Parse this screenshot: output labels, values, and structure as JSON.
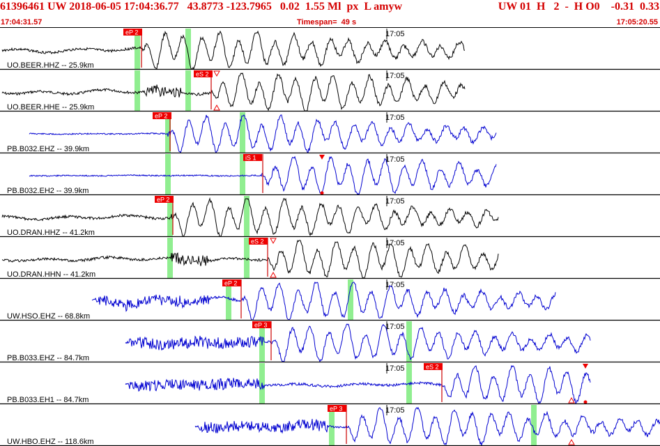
{
  "header": {
    "title": "61396461 UW 2018-06-05 17:04:36.77   43.8773 -123.7965   0.02  1.55 Ml  px  L amyw",
    "right_info": "UW 01  H   2  -  H O0    -0.31  0.33",
    "start_time": "17:04:31.57",
    "timespan_text": "Timespan=  49 s",
    "end_time": "17:05:20.55"
  },
  "tick_label": "17:05",
  "colors": {
    "header_text": "#d40000",
    "pick_box": "#ee0000",
    "pick_line": "#cc0000",
    "window_band": "#90ee90",
    "trace_black": "#000000",
    "trace_blue": "#0000d0",
    "separator": "#000000"
  },
  "traces": [
    {
      "label": "UO.BEER.HHZ -- 25.9km",
      "color": "black",
      "pick": "eP 2"
    },
    {
      "label": "UO.BEER.HHE -- 25.9km",
      "color": "black",
      "pick": "eS 2"
    },
    {
      "label": "PB.B032.EHZ -- 39.9km",
      "color": "blue",
      "pick": "eP 2"
    },
    {
      "label": "PB.B032.EH2 -- 39.9km",
      "color": "blue",
      "pick": "iS 1"
    },
    {
      "label": "UO.DRAN.HHZ -- 41.2km",
      "color": "black",
      "pick": "eP 2"
    },
    {
      "label": "UO.DRAN.HHN -- 41.2km",
      "color": "black",
      "pick": "eS 2"
    },
    {
      "label": "UW.HSO.EHZ -- 68.8km",
      "color": "blue",
      "pick": "eP 2"
    },
    {
      "label": "PB.B033.EHZ -- 84.7km",
      "color": "blue",
      "pick": "eP 3"
    },
    {
      "label": "PB.B033.EH1 -- 84.7km",
      "color": "blue",
      "pick": "eS 2"
    },
    {
      "label": "UW.HBO.EHZ -- 118.6km",
      "color": "blue",
      "pick": "eP 3"
    }
  ]
}
